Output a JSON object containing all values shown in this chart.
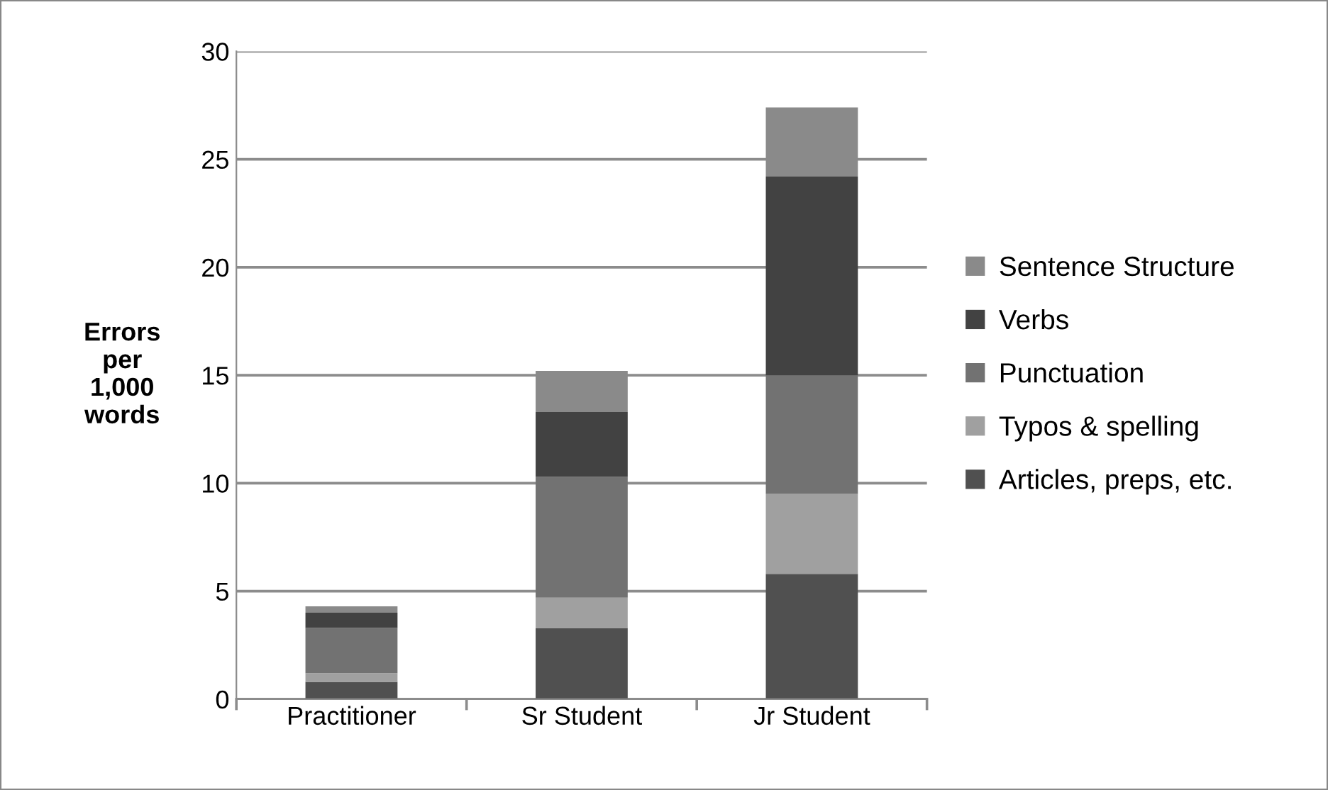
{
  "chart_data": {
    "type": "bar",
    "stacked": true,
    "ylabel": "Errors\nper\n1,000\nwords",
    "categories": [
      "Practitioner",
      "Sr Student",
      "Jr Student"
    ],
    "series": [
      {
        "name": "Articles, preps, etc.",
        "color": "#505050",
        "values": [
          0.8,
          3.3,
          5.8
        ]
      },
      {
        "name": "Typos & spelling",
        "color": "#a0a0a0",
        "values": [
          0.4,
          1.4,
          3.7
        ]
      },
      {
        "name": "Punctuation",
        "color": "#727272",
        "values": [
          2.1,
          5.6,
          5.5
        ]
      },
      {
        "name": "Verbs",
        "color": "#424242",
        "values": [
          0.7,
          3.0,
          9.2
        ]
      },
      {
        "name": "Sentence Structure",
        "color": "#8a8a8a",
        "values": [
          0.3,
          1.9,
          3.2
        ]
      }
    ],
    "ylim": [
      0,
      30
    ],
    "yticks": [
      0,
      5,
      10,
      15,
      20,
      25,
      30
    ],
    "grid": "y",
    "legend": "right"
  }
}
